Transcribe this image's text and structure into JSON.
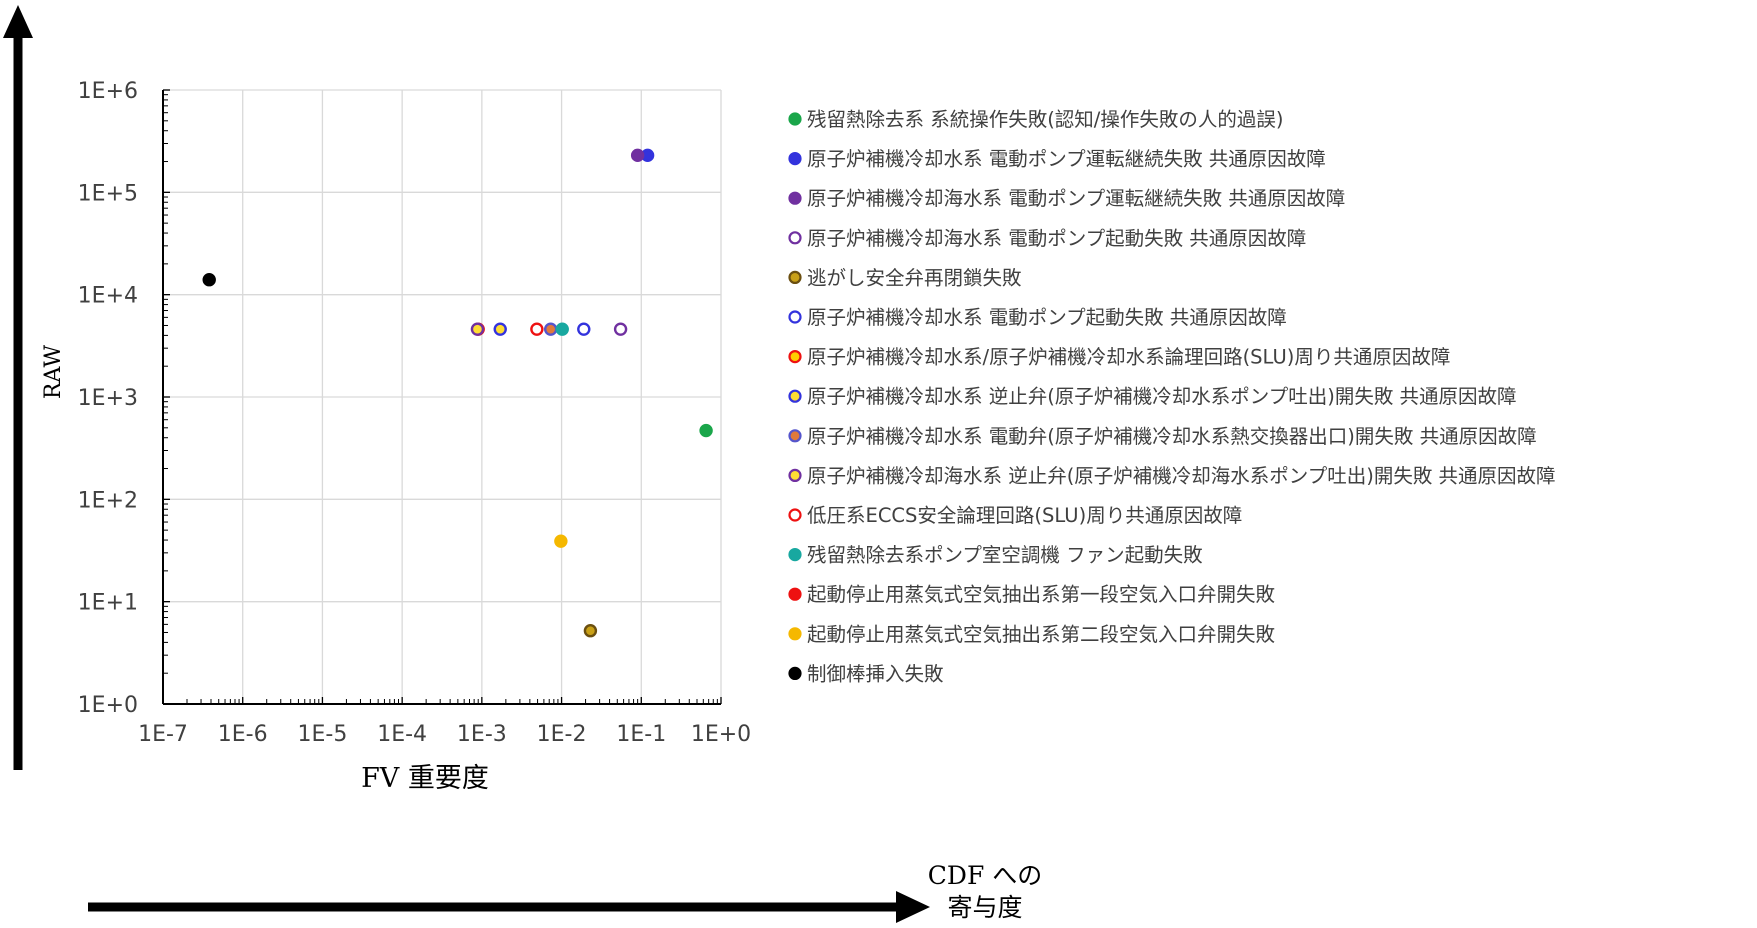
{
  "chart_data": {
    "type": "scatter",
    "xscale": "log",
    "yscale": "log",
    "xlim": [
      1e-07,
      1
    ],
    "ylim": [
      1,
      1000000
    ],
    "x_ticks": [
      "1E-7",
      "1E-6",
      "1E-5",
      "1E-4",
      "1E-3",
      "1E-2",
      "1E-1",
      "1E+0"
    ],
    "y_ticks": [
      "1E+0",
      "1E+1",
      "1E+2",
      "1E+3",
      "1E+4",
      "1E+5",
      "1E+6"
    ],
    "xlabel": "FV 重要度",
    "ylabel": "RAW",
    "grid": true,
    "legend_position": "right",
    "series": [
      {
        "name": "残留熱除去系 系統操作失敗(認知/操作失敗の人的過誤)",
        "fill": "#1aa64a",
        "stroke": "#1aa64a",
        "points": [
          [
            0.65,
            470
          ]
        ]
      },
      {
        "name": "原子炉補機冷却水系 電動ポンプ運転継続失敗 共通原因故障",
        "fill": "#3333dd",
        "stroke": "#3333dd",
        "points": [
          [
            0.12,
            230000
          ]
        ]
      },
      {
        "name": "原子炉補機冷却海水系 電動ポンプ運転継続失敗 共通原因故障",
        "fill": "#7030a0",
        "stroke": "#7030a0",
        "points": [
          [
            0.09,
            230000
          ]
        ]
      },
      {
        "name": "原子炉補機冷却海水系 電動ポンプ起動失敗 共通原因故障",
        "fill": "#ffffff",
        "stroke": "#7030a0",
        "points": [
          [
            0.055,
            4600
          ]
        ]
      },
      {
        "name": "逃がし安全弁再閉鎖失敗",
        "fill": "#c9a017",
        "stroke": "#6b4f10",
        "points": [
          [
            0.023,
            5.2
          ]
        ]
      },
      {
        "name": "原子炉補機冷却水系 電動ポンプ起動失敗 共通原因故障",
        "fill": "#ffffff",
        "stroke": "#3333dd",
        "points": [
          [
            0.019,
            4600
          ]
        ]
      },
      {
        "name": "原子炉補機冷却水系/原子炉補機冷却水系論理回路(SLU)周り共通原因故障",
        "fill": "#ffcc00",
        "stroke": "#ee1111",
        "points": [
          [
            0.0009,
            4600
          ]
        ]
      },
      {
        "name": "原子炉補機冷却水系 逆止弁(原子炉補機冷却水系ポンプ吐出)開失敗 共通原因故障",
        "fill": "#ffdd33",
        "stroke": "#3333dd",
        "points": [
          [
            0.0017,
            4600
          ]
        ]
      },
      {
        "name": "原子炉補機冷却水系 電動弁(原子炉補機冷却水系熱交換器出口)開失敗 共通原因故障",
        "fill": "#e07a3c",
        "stroke": "#5555cc",
        "points": [
          [
            0.0073,
            4600
          ]
        ]
      },
      {
        "name": "原子炉補機冷却海水系 逆止弁(原子炉補機冷却海水系ポンプ吐出)開失敗 共通原因故障",
        "fill": "#ffdd33",
        "stroke": "#7030a0",
        "points": [
          [
            0.00088,
            4600
          ]
        ]
      },
      {
        "name": "低圧系ECCS安全論理回路(SLU)周り共通原因故障",
        "fill": "#ffffff",
        "stroke": "#ee1111",
        "points": [
          [
            0.0049,
            4600
          ]
        ]
      },
      {
        "name": "残留熱除去系ポンプ室空調機 ファン起動失敗",
        "fill": "#18a8a0",
        "stroke": "#18a8a0",
        "points": [
          [
            0.0102,
            4600
          ]
        ]
      },
      {
        "name": "起動停止用蒸気式空気抽出系第一段空気入口弁開失敗",
        "fill": "#ee1111",
        "stroke": "#ee1111",
        "points": []
      },
      {
        "name": "起動停止用蒸気式空気抽出系第二段空気入口弁開失敗",
        "fill": "#f5b800",
        "stroke": "#f5b800",
        "points": [
          [
            0.0098,
            39
          ]
        ]
      },
      {
        "name": "制御棒挿入失敗",
        "fill": "#000000",
        "stroke": "#000000",
        "points": [
          [
            3.8e-07,
            14000
          ]
        ]
      }
    ]
  },
  "annotations": {
    "y_arrow_label": "RAW",
    "x_arrow_label_line1": "CDF への",
    "x_arrow_label_line2": "寄与度"
  }
}
